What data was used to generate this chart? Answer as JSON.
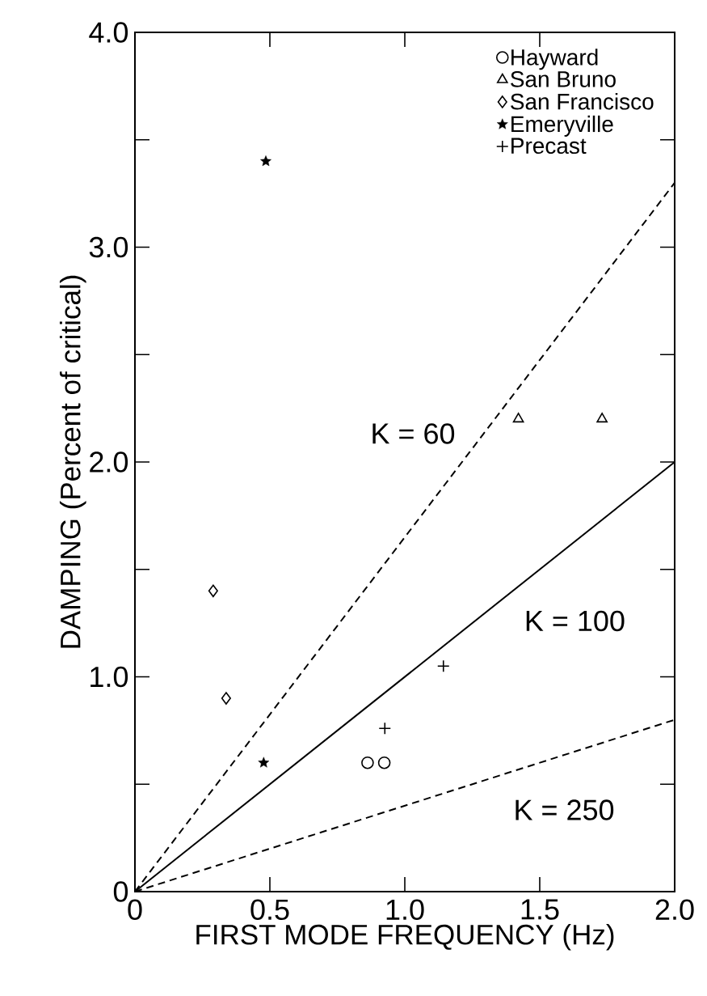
{
  "chart_data": {
    "type": "scatter",
    "xlabel": "FIRST MODE FREQUENCY (Hz)",
    "ylabel": "DAMPING (Percent of critical)",
    "xlim": [
      0,
      2.0
    ],
    "ylim": [
      0,
      4.0
    ],
    "xticks": [
      0,
      {
        "value": 0.5,
        "label": "0.5"
      },
      {
        "value": 1.0,
        "label": "1.0"
      },
      {
        "value": 1.5,
        "label": "1.5"
      },
      {
        "value": 2.0,
        "label": "2.0"
      }
    ],
    "yticks": [
      0,
      {
        "value": 1.0,
        "label": "1.0"
      },
      {
        "value": 2.0,
        "label": "2.0"
      },
      {
        "value": 3.0,
        "label": "3.0"
      },
      {
        "value": 4.0,
        "label": "4.0"
      }
    ],
    "grid": false,
    "legend": "top right",
    "series": [
      {
        "name": "Hayward",
        "color": "#000000",
        "marker": "circle",
        "x": [
          0.862,
          0.924
        ],
        "values": [
          0.6,
          0.6
        ]
      },
      {
        "name": "San Bruno",
        "color": "#000000",
        "marker": "triangle",
        "x": [
          1.421,
          1.731
        ],
        "values": [
          2.2,
          2.2
        ]
      },
      {
        "name": "San Francisco",
        "color": "#000000",
        "marker": "diamond",
        "x": [
          0.29,
          0.338
        ],
        "values": [
          1.4,
          0.9
        ]
      },
      {
        "name": "Emeryville",
        "color": "#000000",
        "marker": "star",
        "x": [
          0.485,
          0.477
        ],
        "values": [
          3.4,
          0.6
        ]
      },
      {
        "name": "Precast",
        "color": "#000000",
        "marker": "cross",
        "x": [
          0.926,
          1.143
        ],
        "values": [
          0.76,
          1.05
        ]
      },
      {
        "type": "line",
        "color": "#000000",
        "line_style": "dashed",
        "marker": "none",
        "x": [
          0,
          2.0
        ],
        "values": [
          0,
          3.3
        ]
      },
      {
        "type": "line",
        "color": "#000000",
        "line_style": "solid",
        "marker": "none",
        "x": [
          0,
          2.0
        ],
        "values": [
          0,
          2.0
        ]
      },
      {
        "type": "line",
        "color": "#000000",
        "line_style": "dashed",
        "marker": "none",
        "x": [
          0,
          2.0
        ],
        "values": [
          0,
          0.8
        ]
      }
    ],
    "annotations": [
      "K = 60",
      "K = 100",
      "K = 250"
    ]
  }
}
